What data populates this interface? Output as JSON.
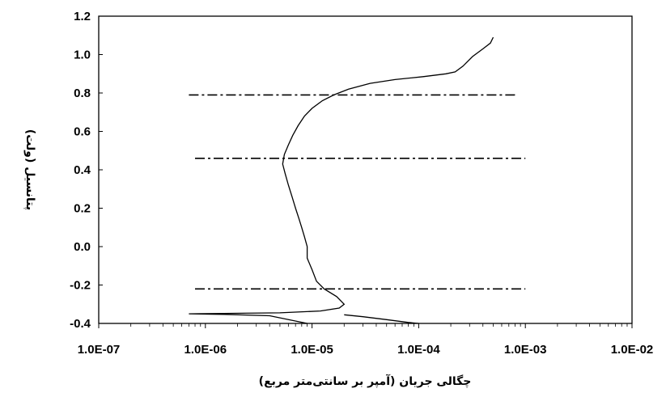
{
  "chart_data": {
    "type": "line",
    "xlabel": "چگالی جریان (آمپر بر سانتی‌متر مربع)",
    "ylabel": "پتانسیل (ولت)",
    "x_scale": "log",
    "xlim": [
      1e-07,
      0.01
    ],
    "ylim": [
      -0.4,
      1.2
    ],
    "x_tick_labels": [
      "1.0E-07",
      "1.0E-06",
      "1.0E-05",
      "1.0E-04",
      "1.0E-03",
      "1.0E-02"
    ],
    "y_tick_labels": [
      "1.2",
      "1.0",
      "0.8",
      "0.6",
      "0.4",
      "0.2",
      "0.0",
      "-0.2",
      "-0.4"
    ],
    "grid": false,
    "legend": false,
    "series": [
      {
        "style": "solid",
        "color": "#000000",
        "x": [
          9e-06,
          4e-06,
          1.5e-06,
          7e-07,
          1.5e-06,
          5e-06,
          1.2e-05,
          1.8e-05,
          2e-05,
          1.7e-05,
          1.3e-05,
          1.1e-05,
          1e-05,
          9e-06,
          9e-06,
          8.5e-06,
          8e-06,
          7.5e-06,
          7e-06,
          6.5e-06,
          6e-06,
          5.6e-06,
          5.3e-06,
          5.5e-06,
          6e-06,
          6.6e-06,
          7.4e-06,
          8.5e-06,
          1e-05,
          1.25e-05,
          1.6e-05,
          2.2e-05,
          3.5e-05,
          6e-05,
          0.00011,
          0.00018,
          0.00022,
          0.00026,
          0.00032,
          0.0004,
          0.00047,
          0.0005
        ],
        "y": [
          -0.4,
          -0.36,
          -0.353,
          -0.35,
          -0.348,
          -0.345,
          -0.335,
          -0.32,
          -0.3,
          -0.26,
          -0.22,
          -0.18,
          -0.12,
          -0.06,
          0.0,
          0.05,
          0.1,
          0.15,
          0.2,
          0.26,
          0.32,
          0.38,
          0.43,
          0.48,
          0.53,
          0.58,
          0.63,
          0.68,
          0.72,
          0.76,
          0.79,
          0.82,
          0.85,
          0.87,
          0.885,
          0.9,
          0.91,
          0.94,
          0.99,
          1.03,
          1.06,
          1.09
        ]
      },
      {
        "style": "solid",
        "color": "#000000",
        "x": [
          2e-05,
          3e-05,
          5e-05,
          8e-05,
          0.0001
        ],
        "y": [
          -0.355,
          -0.365,
          -0.38,
          -0.395,
          -0.4
        ]
      },
      {
        "style": "dash-dot",
        "color": "#000000",
        "x": [
          7e-07,
          0.00085
        ],
        "y": [
          0.79,
          0.79
        ]
      },
      {
        "style": "dash-dot",
        "color": "#000000",
        "x": [
          8e-07,
          0.001
        ],
        "y": [
          0.46,
          0.46
        ]
      },
      {
        "style": "dash-dot",
        "color": "#000000",
        "x": [
          8e-07,
          0.001
        ],
        "y": [
          -0.22,
          -0.22
        ]
      }
    ]
  }
}
